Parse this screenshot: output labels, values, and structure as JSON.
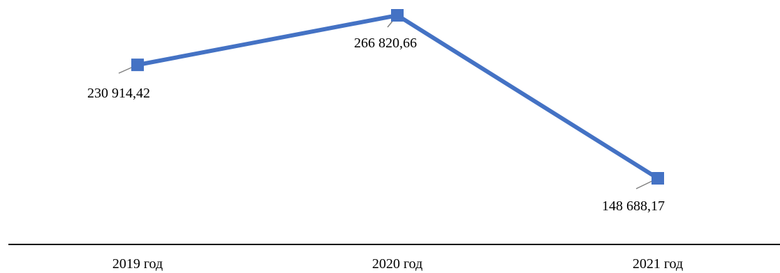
{
  "chart_data": {
    "type": "line",
    "categories": [
      "2019 год",
      "2020 год",
      "2021 год"
    ],
    "series": [
      {
        "values": [
          230914.42,
          266820.66,
          148688.17
        ],
        "labels": [
          "230 914,42",
          "266 820,66",
          "148 688,17"
        ],
        "color": "#4472C4",
        "marker": "square"
      }
    ],
    "title": "",
    "xlabel": "",
    "ylabel": "",
    "legend": "none",
    "grid": false,
    "axis_color": "#000000",
    "leader_color": "#808080"
  }
}
